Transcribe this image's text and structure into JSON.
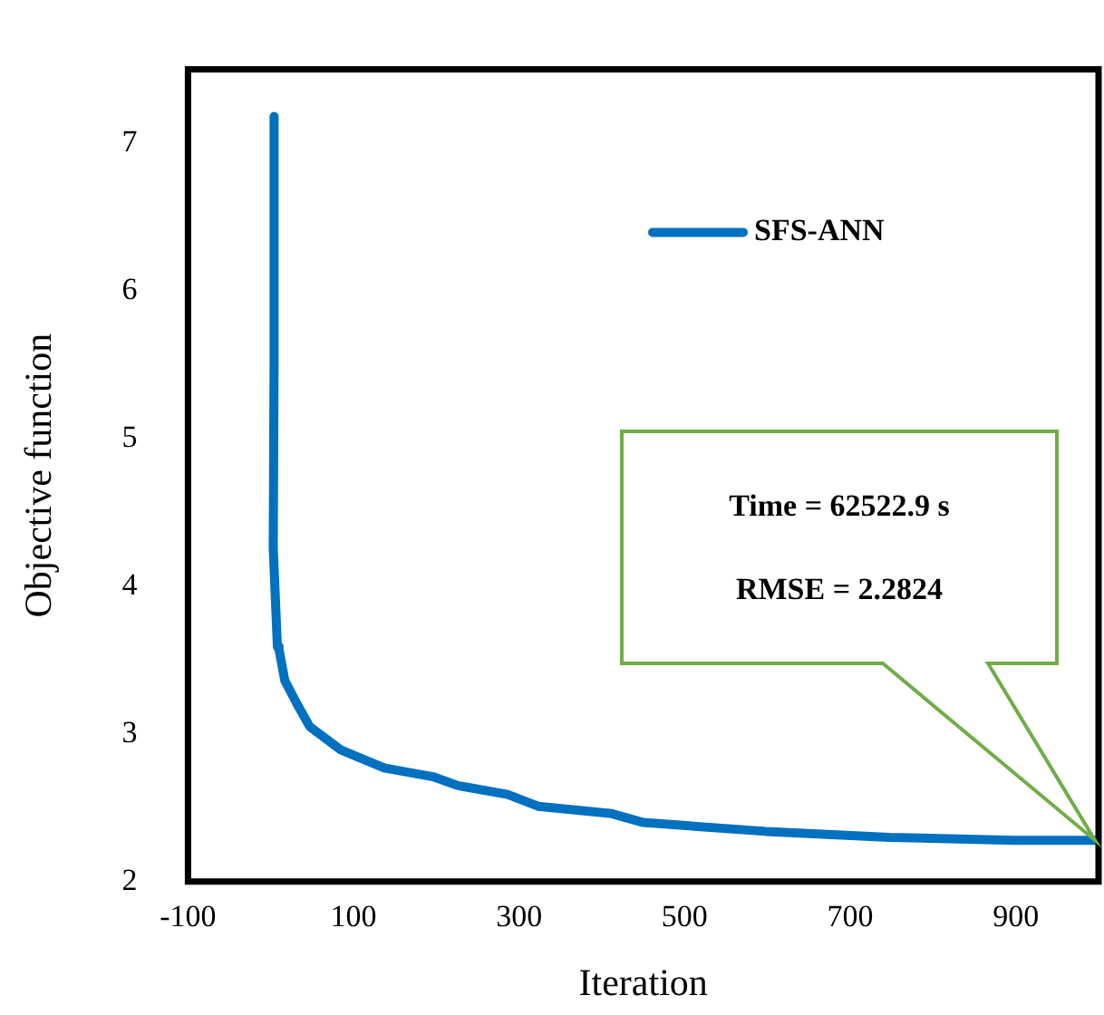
{
  "chart_data": {
    "type": "line",
    "xlabel": "Iteration",
    "ylabel": "Objective function",
    "xlim": [
      -100,
      1000
    ],
    "xticks": [
      -100,
      100,
      300,
      500,
      700,
      900
    ],
    "ylim": [
      2,
      7.5
    ],
    "yticks": [
      2,
      3,
      4,
      5,
      6,
      7
    ],
    "series": [
      {
        "name": "SFS-ANN",
        "color": "#0070c0",
        "x": [
          4,
          4,
          3,
          8,
          10,
          17,
          32,
          47,
          85,
          137,
          196,
          226,
          286,
          323,
          412,
          450,
          598,
          747,
          897,
          1000
        ],
        "values": [
          7.18,
          5.5,
          4.26,
          3.59,
          3.57,
          3.36,
          3.2,
          3.05,
          2.89,
          2.77,
          2.71,
          2.65,
          2.59,
          2.51,
          2.46,
          2.4,
          2.34,
          2.3,
          2.28,
          2.28
        ]
      }
    ],
    "annotations": [
      "Time = 62522.9 s",
      "RMSE = 2.2824"
    ],
    "legend": "top",
    "grid": false,
    "marker": "none",
    "line_style": "solid"
  }
}
